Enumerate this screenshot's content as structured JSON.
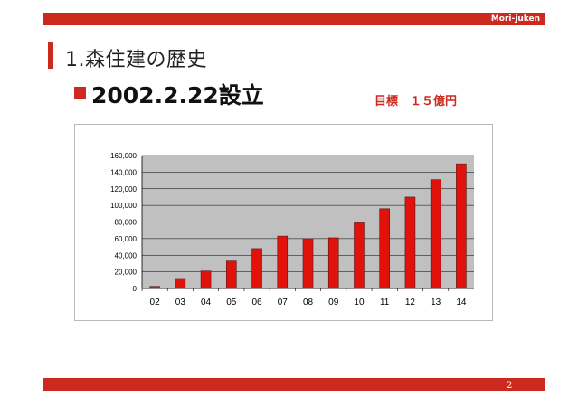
{
  "header": {
    "brand": "Mori-juken"
  },
  "slide": {
    "title": "1.森住建の歴史",
    "subtitle": "2002.2.22設立",
    "target": "目標　１５億円",
    "page_number": "2"
  },
  "colors": {
    "accent": "#cc2a1e",
    "plot_background": "#c0c0c0"
  },
  "chart_data": {
    "type": "bar",
    "categories": [
      "02",
      "03",
      "04",
      "05",
      "06",
      "07",
      "08",
      "09",
      "10",
      "11",
      "12",
      "13",
      "14"
    ],
    "values": [
      2500,
      12000,
      21000,
      33000,
      48000,
      63000,
      60000,
      61000,
      79000,
      96000,
      110000,
      131000,
      150000
    ],
    "ylim": [
      0,
      160000
    ],
    "yticks": [
      0,
      20000,
      40000,
      60000,
      80000,
      100000,
      120000,
      140000,
      160000
    ],
    "ytick_labels": [
      "0",
      "20,000",
      "40,000",
      "60,000",
      "80,000",
      "100,000",
      "120,000",
      "140,000",
      "160,000"
    ],
    "grid": true,
    "legend": false
  }
}
